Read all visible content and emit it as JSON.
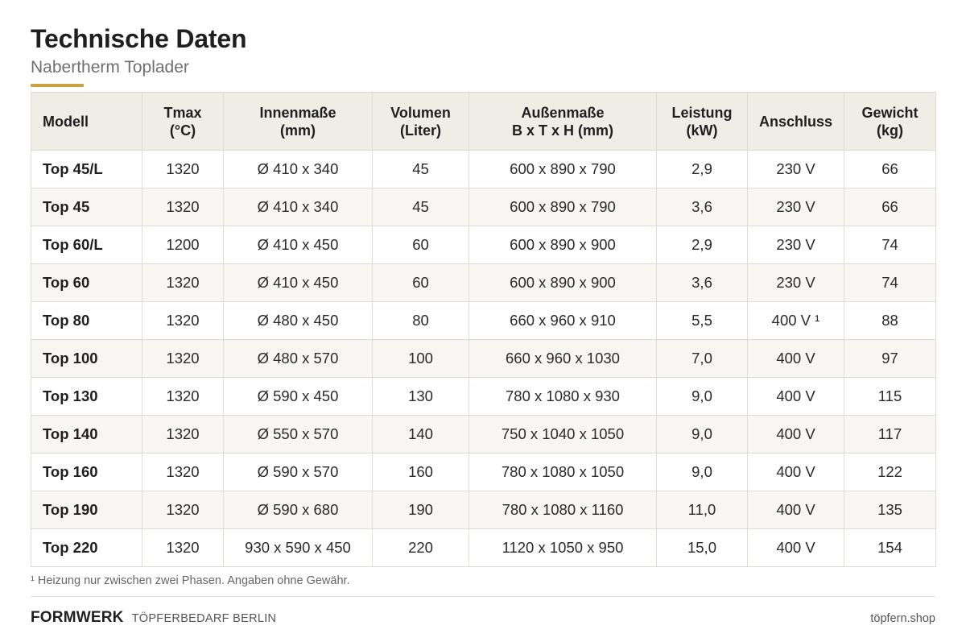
{
  "header": {
    "title": "Technische Daten",
    "subtitle": "Nabertherm Toplader"
  },
  "table": {
    "columns": [
      {
        "line1": "Modell",
        "line2": ""
      },
      {
        "line1": "Tmax",
        "line2": "(°C)"
      },
      {
        "line1": "Innenmaße",
        "line2": "(mm)"
      },
      {
        "line1": "Volumen",
        "line2": "(Liter)"
      },
      {
        "line1": "Außenmaße",
        "line2": "B x T x H (mm)"
      },
      {
        "line1": "Leistung",
        "line2": "(kW)"
      },
      {
        "line1": "Anschluss",
        "line2": ""
      },
      {
        "line1": "Gewicht",
        "line2": "(kg)"
      }
    ],
    "rows": [
      [
        "Top 45/L",
        "1320",
        "Ø 410 x 340",
        "45",
        "600 x 890 x 790",
        "2,9",
        "230 V",
        "66"
      ],
      [
        "Top 45",
        "1320",
        "Ø 410 x 340",
        "45",
        "600 x 890 x 790",
        "3,6",
        "230 V",
        "66"
      ],
      [
        "Top 60/L",
        "1200",
        "Ø 410 x 450",
        "60",
        "600 x 890 x 900",
        "2,9",
        "230 V",
        "74"
      ],
      [
        "Top 60",
        "1320",
        "Ø 410 x 450",
        "60",
        "600 x 890 x 900",
        "3,6",
        "230 V",
        "74"
      ],
      [
        "Top 80",
        "1320",
        "Ø 480 x 450",
        "80",
        "660 x 960 x 910",
        "5,5",
        "400 V ¹",
        "88"
      ],
      [
        "Top 100",
        "1320",
        "Ø 480 x 570",
        "100",
        "660 x 960 x 1030",
        "7,0",
        "400 V",
        "97"
      ],
      [
        "Top 130",
        "1320",
        "Ø 590 x 450",
        "130",
        "780 x 1080 x 930",
        "9,0",
        "400 V",
        "115"
      ],
      [
        "Top 140",
        "1320",
        "Ø 550 x 570",
        "140",
        "750 x 1040 x 1050",
        "9,0",
        "400 V",
        "117"
      ],
      [
        "Top 160",
        "1320",
        "Ø 590 x 570",
        "160",
        "780 x 1080 x 1050",
        "9,0",
        "400 V",
        "122"
      ],
      [
        "Top 190",
        "1320",
        "Ø 590 x 680",
        "190",
        "780 x 1080 x 1160",
        "11,0",
        "400 V",
        "135"
      ],
      [
        "Top 220",
        "1320",
        "930 x 590 x 450",
        "220",
        "1120 x 1050 x 950",
        "15,0",
        "400 V",
        "154"
      ]
    ]
  },
  "footnote": "¹ Heizung nur zwischen zwei Phasen.  Angaben ohne Gewähr.",
  "footer": {
    "brand": "FORMWERK",
    "tagline": "TÖPFERBEDARF BERLIN",
    "site": "töpfern.shop"
  },
  "colors": {
    "accent": "#c9a244",
    "header_bg": "#efede6",
    "stripe_bg": "#f7f6f2",
    "border": "#dedbd3"
  }
}
